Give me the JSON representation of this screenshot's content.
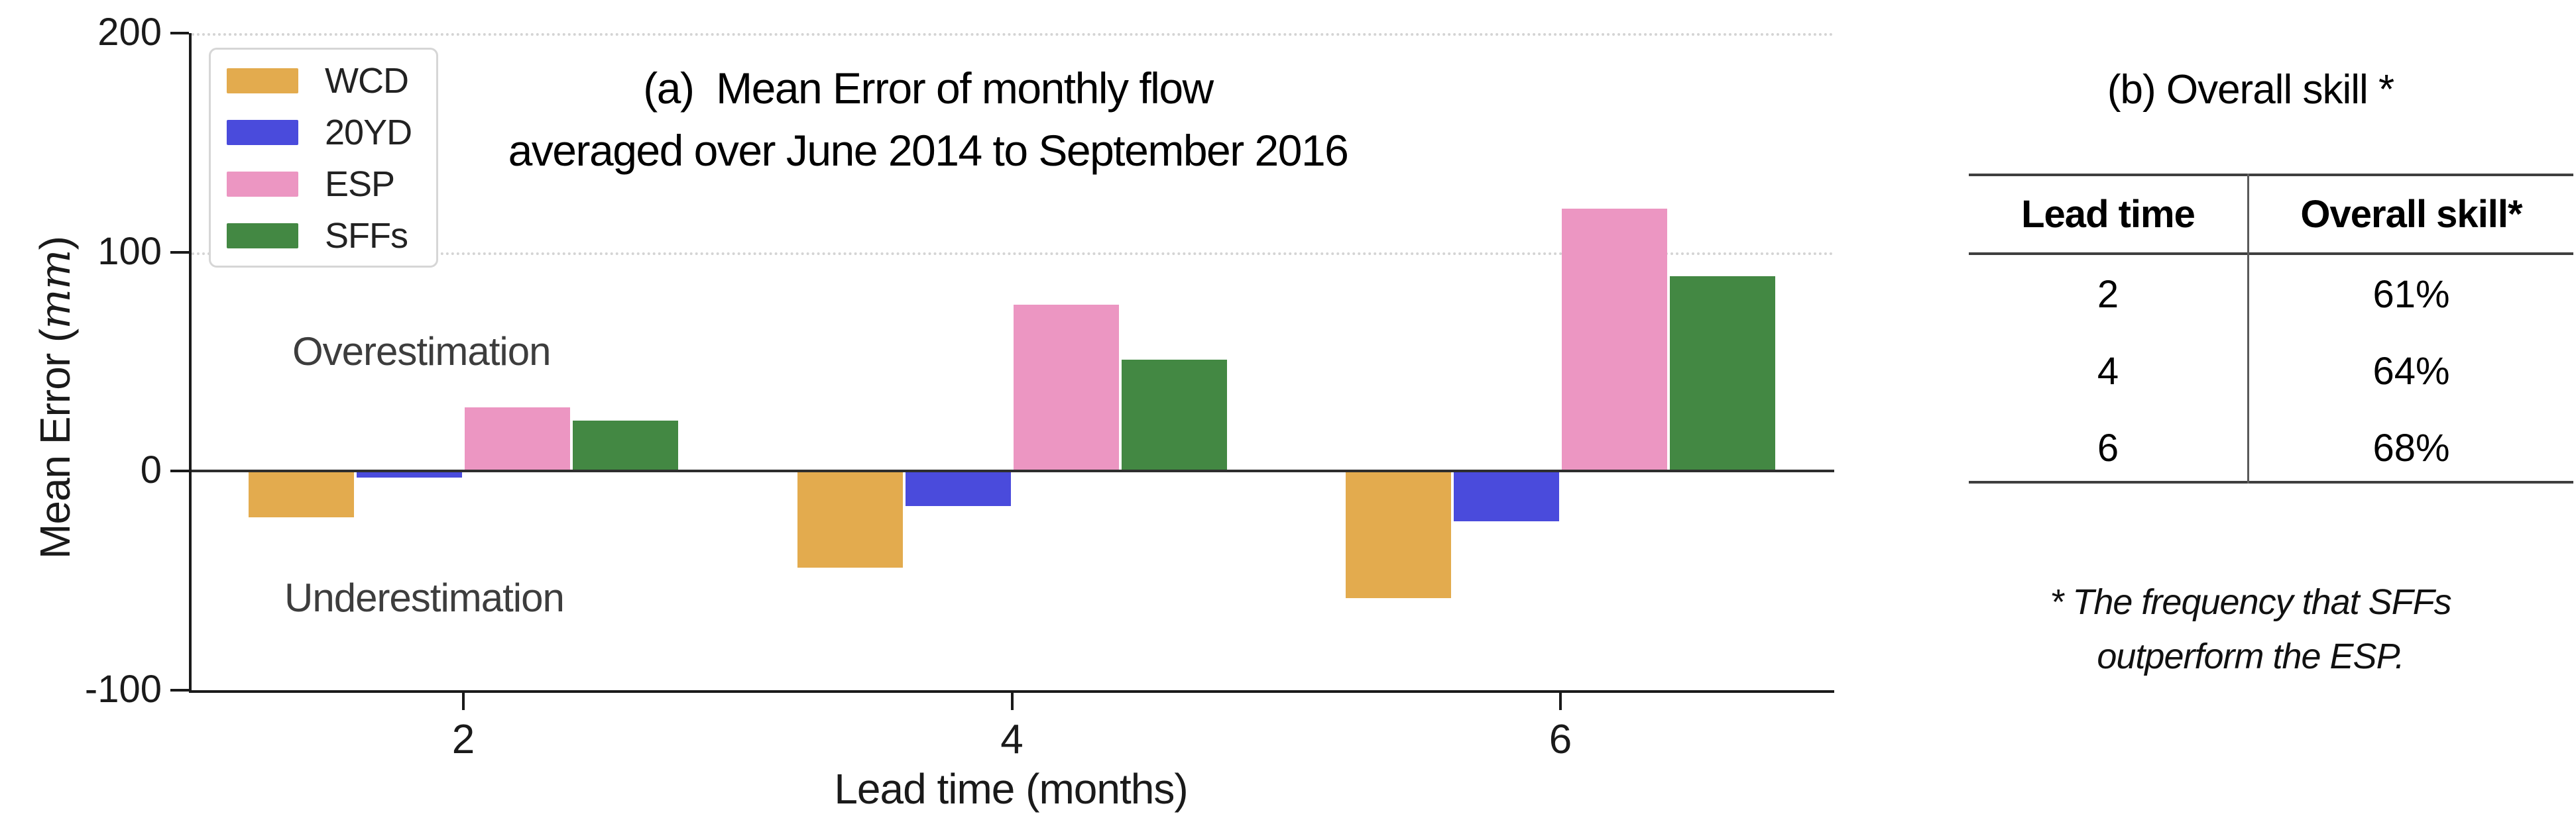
{
  "chart_data": {
    "type": "bar",
    "title_line1": "(a)  Mean Error of monthly flow",
    "title_line2": "averaged over June 2014 to September 2016",
    "xlabel": "Lead time (months)",
    "ylabel_prefix": "Mean Error (",
    "ylabel_unit": "mm",
    "ylabel_suffix": ")",
    "categories": [
      2,
      4,
      6
    ],
    "series": [
      {
        "name": "WCD",
        "color": "#E3AB4E",
        "values": [
          -21,
          -44,
          -58
        ]
      },
      {
        "name": "20YD",
        "color": "#4A4BDC",
        "values": [
          -3,
          -16,
          -23
        ]
      },
      {
        "name": "ESP",
        "color": "#EC96C2",
        "values": [
          29,
          76,
          120
        ]
      },
      {
        "name": "SFFs",
        "color": "#438843",
        "values": [
          23,
          51,
          89
        ]
      }
    ],
    "ylim": [
      -100,
      200
    ],
    "yticks": [
      200,
      100,
      0,
      -100
    ],
    "gridline_values": [
      200,
      100
    ],
    "grid_style": "dotted horizontal",
    "legend_position": "upper left",
    "annotations": {
      "over": "Overestimation",
      "under": "Underestimation"
    }
  },
  "right_panel": {
    "title": "(b) Overall skill *",
    "table": {
      "headers": [
        "Lead time",
        "Overall skill*"
      ],
      "rows": [
        [
          "2",
          "61%"
        ],
        [
          "4",
          "64%"
        ],
        [
          "6",
          "68%"
        ]
      ]
    },
    "footnote_line1": "* The frequency that SFFs",
    "footnote_line2": "outperform the ESP."
  }
}
